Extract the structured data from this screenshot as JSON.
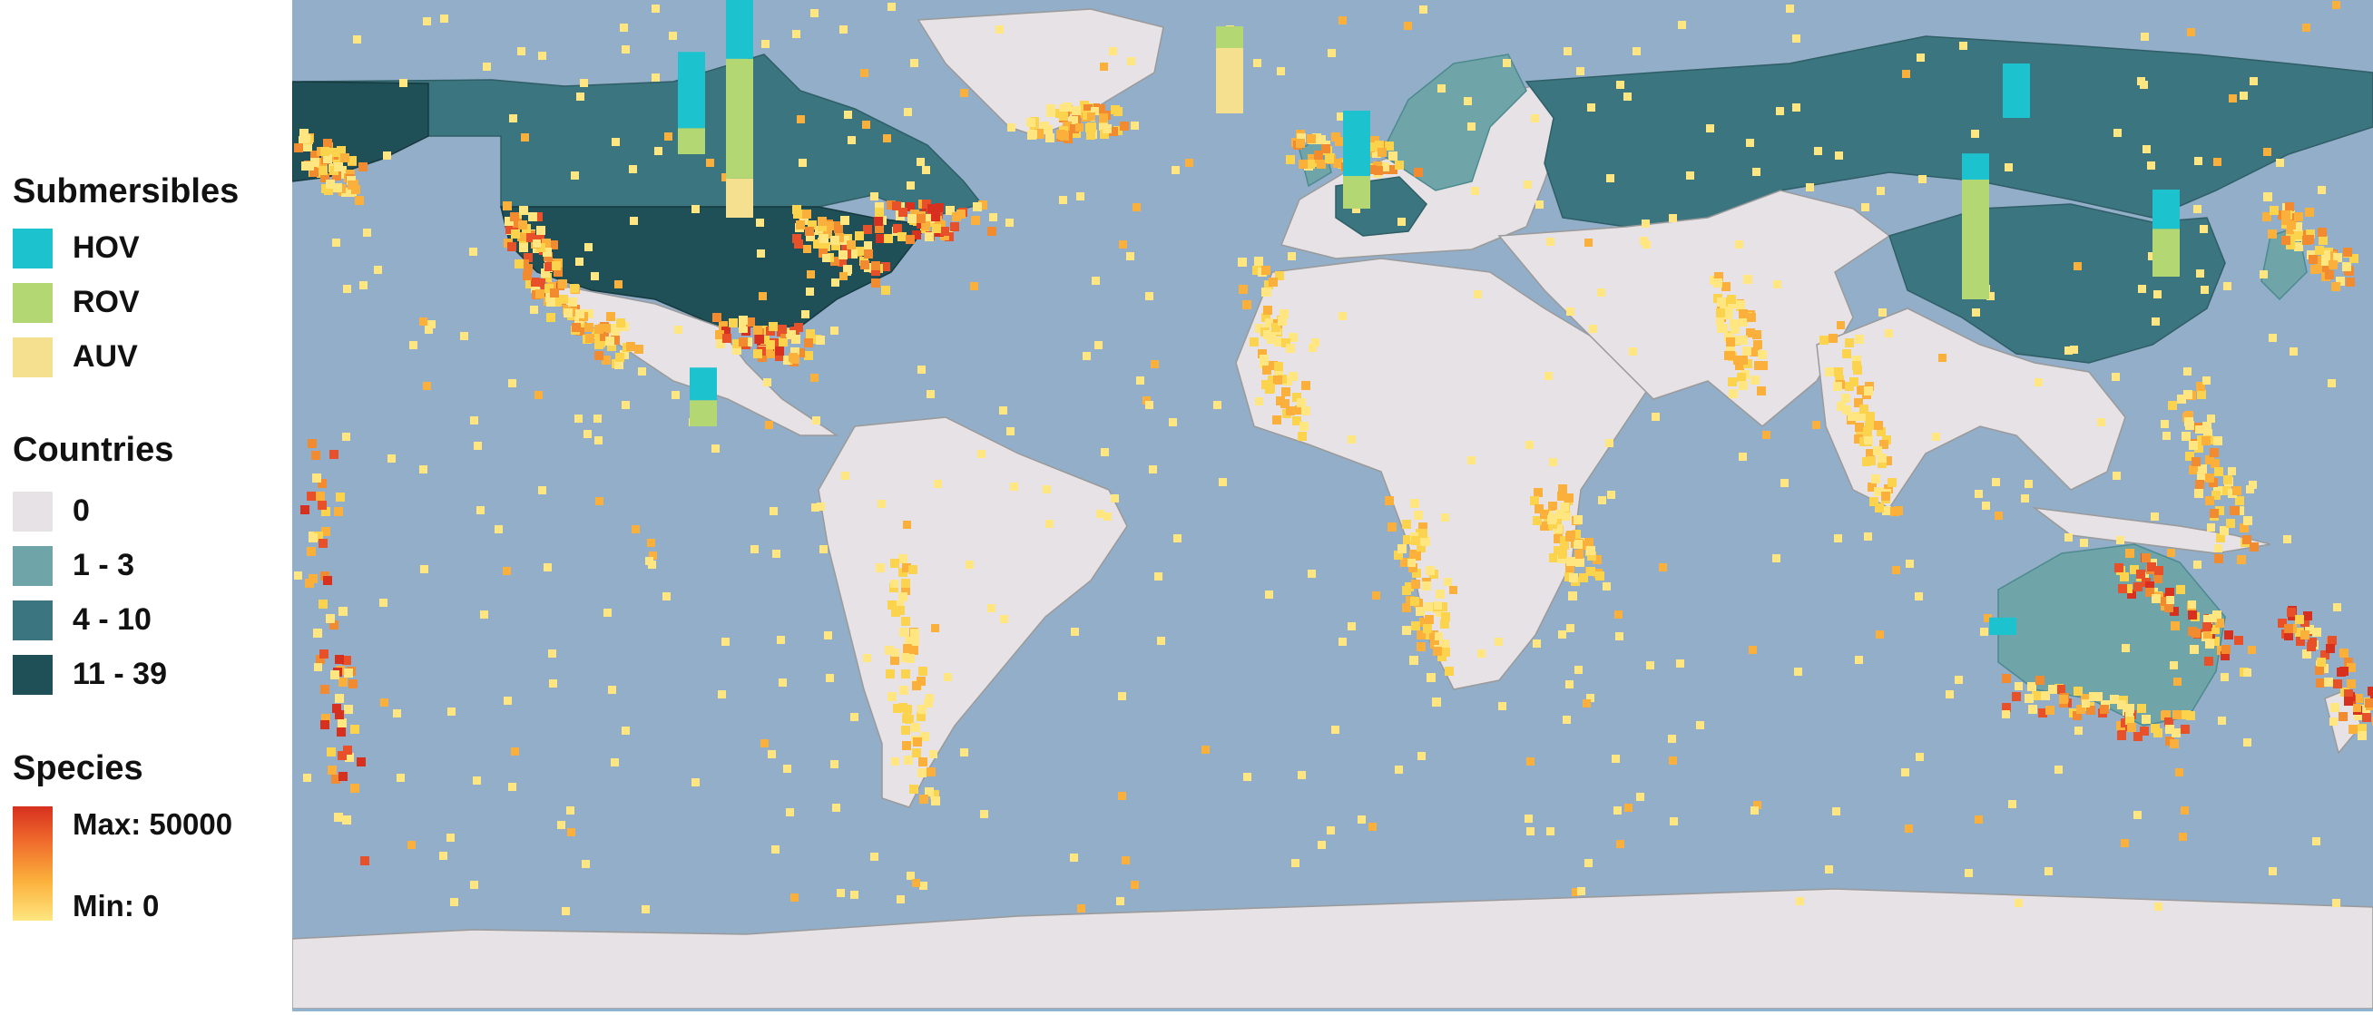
{
  "legend": {
    "submersibles": {
      "title": "Submersibles",
      "items": [
        {
          "label": "HOV",
          "color": "#1cc3cf"
        },
        {
          "label": "ROV",
          "color": "#b3d873"
        },
        {
          "label": "AUV",
          "color": "#f4e08f"
        }
      ]
    },
    "countries": {
      "title": "Countries",
      "items": [
        {
          "label": "0",
          "color": "#e7e2e6"
        },
        {
          "label": "1 - 3",
          "color": "#6fa5a8"
        },
        {
          "label": "4 - 10",
          "color": "#3b7680"
        },
        {
          "label": "11 - 39",
          "color": "#1f4f57"
        }
      ]
    },
    "species": {
      "title": "Species",
      "max_label": "Max: 50000",
      "min_label": "Min: 0",
      "color_max": "#d7301f",
      "color_min": "#ffe680"
    }
  },
  "map": {
    "ocean_color": "#93aec8",
    "projection": "equirectangular world map",
    "country_classes": [
      {
        "region": "United States",
        "class": "11 - 39"
      },
      {
        "region": "Canada",
        "class": "4 - 10"
      },
      {
        "region": "Russia",
        "class": "4 - 10"
      },
      {
        "region": "China",
        "class": "4 - 10"
      },
      {
        "region": "Japan",
        "class": "1 - 3"
      },
      {
        "region": "Australia",
        "class": "1 - 3"
      },
      {
        "region": "France",
        "class": "4 - 10"
      },
      {
        "region": "Germany",
        "class": "4 - 10"
      },
      {
        "region": "Norway",
        "class": "1 - 3"
      },
      {
        "region": "Sweden",
        "class": "1 - 3"
      },
      {
        "region": "Finland",
        "class": "1 - 3"
      },
      {
        "region": "United Kingdom",
        "class": "1 - 3"
      },
      {
        "region": "Italy",
        "class": "1 - 3"
      },
      {
        "region": "Turkey",
        "class": "1 - 3"
      },
      {
        "region": "Portugal",
        "class": "1 - 3"
      },
      {
        "region": "Spain",
        "class": "1 - 3"
      },
      {
        "region": "Greenland",
        "class": "0"
      },
      {
        "region": "South America",
        "class": "0"
      },
      {
        "region": "Africa",
        "class": "0"
      },
      {
        "region": "Antarctica",
        "class": "0"
      }
    ],
    "submersible_bars": [
      {
        "region": "United States",
        "hov": 1.0,
        "rov": 0.55,
        "auv": 0.18
      },
      {
        "region": "Canada",
        "hov": 0.35,
        "rov": 0.12
      },
      {
        "region": "Russia",
        "hov": 0.25
      },
      {
        "region": "China",
        "hov": 0.12,
        "rov": 0.55
      },
      {
        "region": "Japan",
        "hov": 0.18,
        "rov": 0.22
      },
      {
        "region": "Norway",
        "auv": 0.3,
        "rov": 0.1
      },
      {
        "region": "France",
        "hov": 0.3,
        "rov": 0.15
      },
      {
        "region": "Mexico",
        "hov": 0.15,
        "rov": 0.12
      },
      {
        "region": "Australia",
        "hov": 0.08
      }
    ]
  }
}
